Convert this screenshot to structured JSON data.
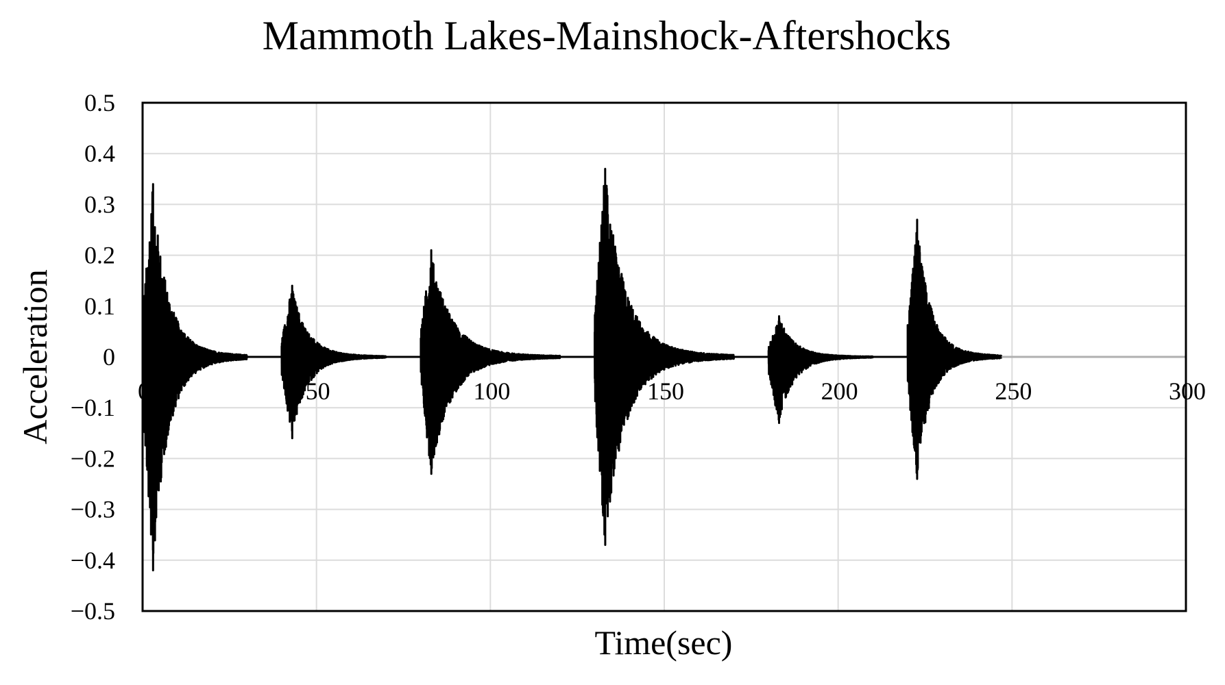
{
  "chart_data": {
    "type": "line",
    "title": "Mammoth  Lakes-Mainshock-Aftershocks",
    "xlabel": "Time(sec)",
    "ylabel": "Acceleration",
    "xlim": [
      0,
      300
    ],
    "ylim": [
      -0.5,
      0.5
    ],
    "x_ticks": [
      0,
      50,
      100,
      150,
      200,
      250,
      300
    ],
    "y_ticks": [
      0.5,
      0.4,
      0.3,
      0.2,
      0.1,
      0,
      -0.1,
      -0.2,
      -0.3,
      -0.4,
      -0.5
    ],
    "grid": true,
    "legend": "none",
    "series": [
      {
        "color": "#000000",
        "events": [
          {
            "start": 0,
            "end": 30,
            "peak_positive": 0.34,
            "peak_negative": -0.42
          },
          {
            "start": 40,
            "end": 70,
            "peak_positive": 0.14,
            "peak_negative": -0.16
          },
          {
            "start": 80,
            "end": 120,
            "peak_positive": 0.21,
            "peak_negative": -0.23
          },
          {
            "start": 130,
            "end": 170,
            "peak_positive": 0.37,
            "peak_negative": -0.37
          },
          {
            "start": 180,
            "end": 210,
            "peak_positive": 0.08,
            "peak_negative": -0.13
          },
          {
            "start": 220,
            "end": 247,
            "peak_positive": 0.27,
            "peak_negative": -0.24
          }
        ]
      },
      {
        "color": "#b0b0b0",
        "x": [
          247,
          300
        ],
        "y": [
          0,
          0
        ]
      }
    ]
  }
}
